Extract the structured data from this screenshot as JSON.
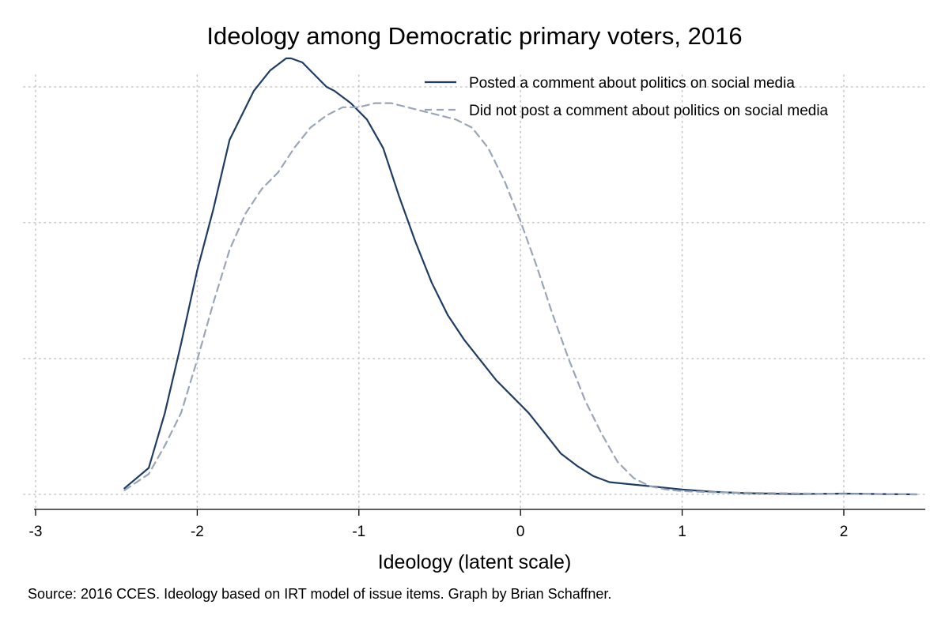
{
  "chart_data": {
    "type": "line",
    "title": "Ideology among Democratic primary voters, 2016",
    "xlabel": "Ideology (latent scale)",
    "ylabel": "",
    "xlim": [
      -3,
      2.45
    ],
    "ylim": [
      0,
      1.05
    ],
    "x_ticks": [
      "-3",
      "-2",
      "-1",
      "0",
      "1",
      "2"
    ],
    "x_tick_values": [
      -3,
      -2,
      -1,
      0,
      1,
      2
    ],
    "y_gridlines": [
      0,
      0.333,
      0.667,
      1.0
    ],
    "series": [
      {
        "name": "Posted a comment about politics on social media",
        "style": "solid",
        "color": "#1f3d63",
        "x": [
          -2.45,
          -2.3,
          -2.2,
          -2.1,
          -2.0,
          -1.9,
          -1.8,
          -1.65,
          -1.55,
          -1.45,
          -1.42,
          -1.35,
          -1.3,
          -1.2,
          -1.15,
          -1.05,
          -0.95,
          -0.85,
          -0.75,
          -0.65,
          -0.55,
          -0.45,
          -0.35,
          -0.25,
          -0.15,
          -0.05,
          0.05,
          0.15,
          0.25,
          0.35,
          0.45,
          0.55,
          0.7,
          0.85,
          1.0,
          1.1,
          1.2,
          1.4,
          1.7,
          2.0,
          2.2,
          2.45
        ],
        "y": [
          0.015,
          0.065,
          0.2,
          0.37,
          0.55,
          0.7,
          0.87,
          0.99,
          1.04,
          1.07,
          1.07,
          1.06,
          1.04,
          1.0,
          0.99,
          0.96,
          0.92,
          0.85,
          0.73,
          0.62,
          0.52,
          0.44,
          0.38,
          0.33,
          0.28,
          0.24,
          0.2,
          0.15,
          0.1,
          0.07,
          0.045,
          0.03,
          0.024,
          0.018,
          0.012,
          0.009,
          0.006,
          0.003,
          0.001,
          0.002,
          0.001,
          0.0
        ],
        "values": [
          0.015,
          0.065,
          0.2,
          0.37,
          0.55,
          0.7,
          0.87,
          0.99,
          1.04,
          1.07,
          1.07,
          1.06,
          1.04,
          1.0,
          0.99,
          0.96,
          0.92,
          0.85,
          0.73,
          0.62,
          0.52,
          0.44,
          0.38,
          0.33,
          0.28,
          0.24,
          0.2,
          0.15,
          0.1,
          0.07,
          0.045,
          0.03,
          0.024,
          0.018,
          0.012,
          0.009,
          0.006,
          0.003,
          0.001,
          0.002,
          0.001,
          0.0
        ]
      },
      {
        "name": "Did not post a comment about politics on social media",
        "style": "dashed",
        "color": "#9aa6b8",
        "x": [
          -2.45,
          -2.3,
          -2.2,
          -2.1,
          -2.0,
          -1.9,
          -1.8,
          -1.7,
          -1.6,
          -1.5,
          -1.4,
          -1.3,
          -1.2,
          -1.1,
          -1.0,
          -0.9,
          -0.8,
          -0.7,
          -0.6,
          -0.5,
          -0.4,
          -0.3,
          -0.2,
          -0.1,
          0.0,
          0.1,
          0.2,
          0.3,
          0.4,
          0.5,
          0.6,
          0.7,
          0.8,
          0.9,
          1.0,
          1.2,
          1.4,
          1.6,
          1.8,
          2.0,
          2.2,
          2.45
        ],
        "y": [
          0.01,
          0.05,
          0.12,
          0.2,
          0.33,
          0.47,
          0.6,
          0.69,
          0.75,
          0.79,
          0.85,
          0.9,
          0.93,
          0.95,
          0.95,
          0.96,
          0.96,
          0.95,
          0.94,
          0.93,
          0.92,
          0.9,
          0.85,
          0.77,
          0.67,
          0.56,
          0.44,
          0.33,
          0.23,
          0.15,
          0.08,
          0.04,
          0.02,
          0.012,
          0.008,
          0.005,
          0.004,
          0.003,
          0.002,
          0.001,
          0.001,
          0.0
        ],
        "values": [
          0.01,
          0.05,
          0.12,
          0.2,
          0.33,
          0.47,
          0.6,
          0.69,
          0.75,
          0.79,
          0.85,
          0.9,
          0.93,
          0.95,
          0.95,
          0.96,
          0.96,
          0.95,
          0.94,
          0.93,
          0.92,
          0.9,
          0.85,
          0.77,
          0.67,
          0.56,
          0.44,
          0.33,
          0.23,
          0.15,
          0.08,
          0.04,
          0.02,
          0.012,
          0.008,
          0.005,
          0.004,
          0.003,
          0.002,
          0.001,
          0.001,
          0.0
        ]
      }
    ],
    "legend_position": "top-right",
    "grid": true
  },
  "source_note": "Source: 2016 CCES. Ideology based on IRT model of issue items. Graph by Brian Schaffner."
}
